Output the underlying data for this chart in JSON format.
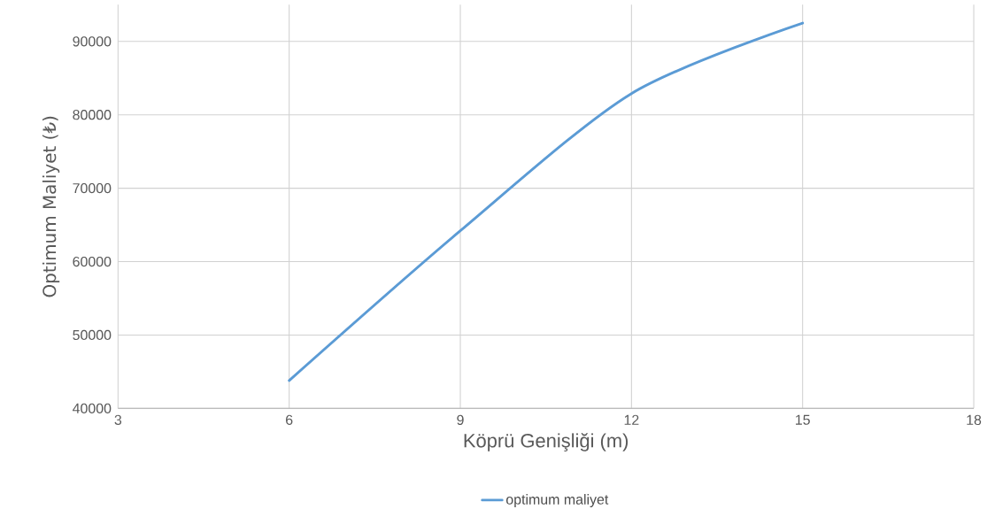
{
  "chart_data": {
    "type": "line",
    "xlabel": "Köprü Genişliği (m)",
    "ylabel": "Optimum Maliyet (₺)",
    "x": [
      6,
      9,
      12,
      15
    ],
    "series": [
      {
        "name": "optimum maliyet",
        "color": "#5b9bd5",
        "values": [
          43800,
          64200,
          82900,
          92500
        ]
      }
    ],
    "xlim": [
      3,
      18
    ],
    "ylim": [
      40000,
      95000
    ],
    "xticks": [
      3,
      6,
      9,
      12,
      15,
      18
    ],
    "yticks": [
      40000,
      50000,
      60000,
      70000,
      80000,
      90000
    ],
    "grid": true,
    "legend": "bottom"
  }
}
